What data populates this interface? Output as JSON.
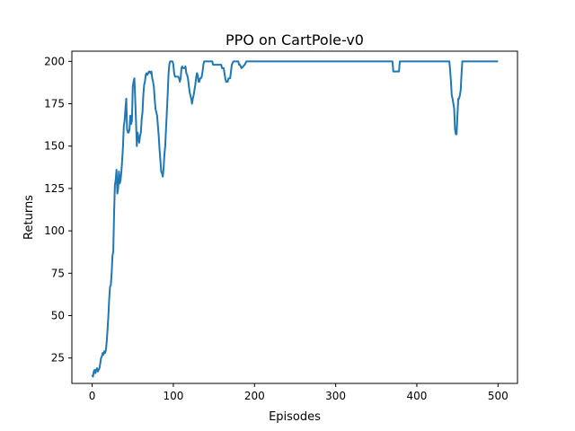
{
  "chart_data": {
    "type": "line",
    "title": "PPO on CartPole-v0",
    "xlabel": "Episodes",
    "ylabel": "Returns",
    "xlim": [
      -25,
      524
    ],
    "ylim": [
      10,
      206
    ],
    "xticks": [
      0,
      100,
      200,
      300,
      400,
      500
    ],
    "yticks": [
      25,
      50,
      75,
      100,
      125,
      150,
      175,
      200
    ],
    "grid": false,
    "color": "#1f77b4",
    "series": [
      {
        "points": [
          [
            0,
            15
          ],
          [
            1,
            14
          ],
          [
            2,
            17
          ],
          [
            3,
            18
          ],
          [
            4,
            16
          ],
          [
            5,
            18
          ],
          [
            6,
            19
          ],
          [
            7,
            17
          ],
          [
            8,
            18
          ],
          [
            9,
            19
          ],
          [
            10,
            22
          ],
          [
            11,
            25
          ],
          [
            12,
            26
          ],
          [
            13,
            28
          ],
          [
            14,
            27
          ],
          [
            15,
            29
          ],
          [
            16,
            28
          ],
          [
            17,
            30
          ],
          [
            18,
            35
          ],
          [
            19,
            42
          ],
          [
            20,
            50
          ],
          [
            21,
            60
          ],
          [
            22,
            67
          ],
          [
            23,
            68
          ],
          [
            24,
            75
          ],
          [
            25,
            85
          ],
          [
            26,
            88
          ],
          [
            27,
            110
          ],
          [
            28,
            127
          ],
          [
            29,
            130
          ],
          [
            30,
            136
          ],
          [
            31,
            122
          ],
          [
            32,
            125
          ],
          [
            33,
            135
          ],
          [
            34,
            128
          ],
          [
            35,
            130
          ],
          [
            36,
            135
          ],
          [
            37,
            142
          ],
          [
            38,
            150
          ],
          [
            39,
            162
          ],
          [
            40,
            165
          ],
          [
            41,
            172
          ],
          [
            42,
            178
          ],
          [
            43,
            160
          ],
          [
            44,
            158
          ],
          [
            45,
            158
          ],
          [
            46,
            160
          ],
          [
            47,
            168
          ],
          [
            48,
            163
          ],
          [
            49,
            165
          ],
          [
            50,
            185
          ],
          [
            51,
            188
          ],
          [
            52,
            190
          ],
          [
            53,
            178
          ],
          [
            54,
            165
          ],
          [
            55,
            150
          ],
          [
            56,
            158
          ],
          [
            57,
            155
          ],
          [
            58,
            152
          ],
          [
            59,
            156
          ],
          [
            60,
            158
          ],
          [
            61,
            166
          ],
          [
            62,
            170
          ],
          [
            63,
            180
          ],
          [
            64,
            186
          ],
          [
            65,
            188
          ],
          [
            66,
            192
          ],
          [
            67,
            193
          ],
          [
            68,
            192
          ],
          [
            69,
            193
          ],
          [
            70,
            194
          ],
          [
            71,
            194
          ],
          [
            72,
            193
          ],
          [
            73,
            194
          ],
          [
            74,
            190
          ],
          [
            75,
            188
          ],
          [
            76,
            185
          ],
          [
            77,
            178
          ],
          [
            78,
            172
          ],
          [
            79,
            170
          ],
          [
            80,
            168
          ],
          [
            81,
            162
          ],
          [
            82,
            156
          ],
          [
            83,
            148
          ],
          [
            84,
            142
          ],
          [
            85,
            135
          ],
          [
            86,
            134
          ],
          [
            87,
            132
          ],
          [
            88,
            137
          ],
          [
            89,
            145
          ],
          [
            90,
            150
          ],
          [
            91,
            160
          ],
          [
            92,
            170
          ],
          [
            93,
            180
          ],
          [
            94,
            192
          ],
          [
            95,
            198
          ],
          [
            96,
            200
          ],
          [
            97,
            200
          ],
          [
            98,
            200
          ],
          [
            99,
            200
          ],
          [
            100,
            198
          ],
          [
            101,
            193
          ],
          [
            102,
            191
          ],
          [
            103,
            191
          ],
          [
            104,
            191
          ],
          [
            105,
            191
          ],
          [
            106,
            191
          ],
          [
            107,
            190
          ],
          [
            108,
            188
          ],
          [
            109,
            190
          ],
          [
            110,
            196
          ],
          [
            111,
            197
          ],
          [
            112,
            196
          ],
          [
            113,
            196
          ],
          [
            114,
            196
          ],
          [
            115,
            197
          ],
          [
            116,
            193
          ],
          [
            117,
            192
          ],
          [
            118,
            190
          ],
          [
            119,
            186
          ],
          [
            120,
            182
          ],
          [
            121,
            180
          ],
          [
            122,
            178
          ],
          [
            123,
            175
          ],
          [
            124,
            178
          ],
          [
            125,
            180
          ],
          [
            126,
            183
          ],
          [
            127,
            186
          ],
          [
            128,
            190
          ],
          [
            129,
            193
          ],
          [
            130,
            192
          ],
          [
            131,
            188
          ],
          [
            132,
            188
          ],
          [
            133,
            190
          ],
          [
            134,
            190
          ],
          [
            135,
            191
          ],
          [
            136,
            194
          ],
          [
            137,
            198
          ],
          [
            138,
            200
          ],
          [
            148,
            200
          ],
          [
            149,
            198
          ],
          [
            150,
            198
          ],
          [
            158,
            198
          ],
          [
            159,
            198
          ],
          [
            160,
            196
          ],
          [
            162,
            196
          ],
          [
            163,
            193
          ],
          [
            164,
            190
          ],
          [
            165,
            188
          ],
          [
            167,
            188
          ],
          [
            168,
            190
          ],
          [
            170,
            190
          ],
          [
            172,
            198
          ],
          [
            174,
            200
          ],
          [
            180,
            200
          ],
          [
            181,
            198
          ],
          [
            182,
            198
          ],
          [
            183,
            197
          ],
          [
            184,
            196
          ],
          [
            186,
            197
          ],
          [
            188,
            198
          ],
          [
            190,
            200
          ],
          [
            370,
            200
          ],
          [
            371,
            194
          ],
          [
            378,
            194
          ],
          [
            379,
            200
          ],
          [
            440,
            200
          ],
          [
            441,
            195
          ],
          [
            442,
            188
          ],
          [
            443,
            180
          ],
          [
            444,
            178
          ],
          [
            445,
            175
          ],
          [
            446,
            172
          ],
          [
            447,
            160
          ],
          [
            448,
            157
          ],
          [
            449,
            157
          ],
          [
            450,
            168
          ],
          [
            451,
            178
          ],
          [
            452,
            178
          ],
          [
            453,
            180
          ],
          [
            454,
            183
          ],
          [
            455,
            192
          ],
          [
            456,
            200
          ],
          [
            500,
            200
          ]
        ]
      }
    ]
  }
}
